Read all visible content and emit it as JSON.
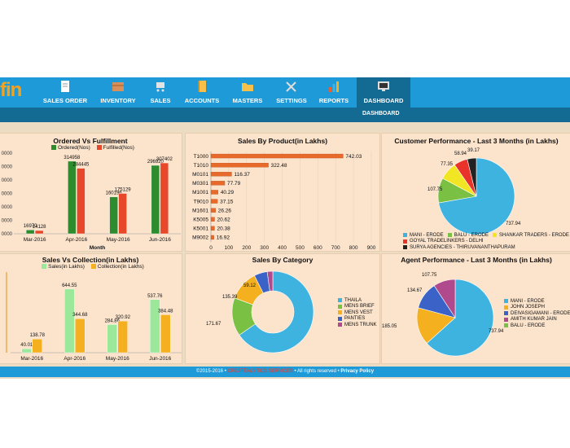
{
  "brand": {
    "logo_text": "fin"
  },
  "menu": [
    {
      "label": "SALES ORDER",
      "icon": "document-icon",
      "color": "#ffffff"
    },
    {
      "label": "INVENTORY",
      "icon": "box-icon",
      "color": "#d8905a"
    },
    {
      "label": "SALES",
      "icon": "cart-icon",
      "color": "#e3e3e3"
    },
    {
      "label": "ACCOUNTS",
      "icon": "ledger-icon",
      "color": "#f7c04a"
    },
    {
      "label": "MASTERS",
      "icon": "folder-icon",
      "color": "#f7c04a"
    },
    {
      "label": "SETTINGS",
      "icon": "tools-icon",
      "color": "#dddddd"
    },
    {
      "label": "REPORTS",
      "icon": "bar-chart-icon",
      "color": "#e9622d"
    },
    {
      "label": "DASHBOARD",
      "icon": "monitor-icon",
      "color": "#dddddd"
    }
  ],
  "submenu": {
    "label": "DASHBOARD"
  },
  "footer": {
    "copyright": "©2015-2016 • ",
    "brand": "CREATEALYTICS SERVICES",
    "rights": " • All rights reserved • ",
    "policy": "Privacy Policy"
  },
  "colors": {
    "nav": "#1f9ad8",
    "subnav": "#136a93",
    "panel": "#fbe3cc"
  },
  "chart_data": [
    {
      "id": "ordered",
      "type": "bar",
      "title": "Ordered Vs Fulfillment",
      "xlabel": "Month",
      "categories": [
        "Mar-2016",
        "Apr-2016",
        "May-2016",
        "Jun-2016"
      ],
      "series": [
        {
          "name": "Ordered(Nos)",
          "color": "#2e8b2e",
          "values": [
            16970,
            314958,
            160196,
            296920
          ]
        },
        {
          "name": "Fulfilled(Nos)",
          "color": "#e8482a",
          "values": [
            14128,
            284445,
            175129,
            307402
          ]
        }
      ],
      "yticks": [
        "0000",
        "0000",
        "0000",
        "0000",
        "0000",
        "0000",
        "0000"
      ],
      "ylim": [
        0,
        350000
      ]
    },
    {
      "id": "product",
      "type": "bar",
      "orientation": "horizontal",
      "title": "Sales By Product(in Lakhs)",
      "categories": [
        "T1000",
        "T1010",
        "M0101",
        "M0301",
        "M1001",
        "T9010",
        "M1601",
        "K5005",
        "K5001",
        "M9002"
      ],
      "values": [
        742.03,
        322.48,
        116.37,
        77.79,
        40.29,
        37.15,
        26.26,
        20.62,
        20.38,
        16.92
      ],
      "value_labels": [
        "742.03",
        "322.48",
        "116.37",
        "77.79",
        "40.29",
        "37.15",
        "26.26",
        "20.62",
        "20.38",
        "16.92"
      ],
      "xticks": [
        "0",
        "100",
        "200",
        "300",
        "400",
        "500",
        "600",
        "700",
        "800",
        "900"
      ],
      "xlim": [
        0,
        900
      ],
      "color": "#e86a2a"
    },
    {
      "id": "customer",
      "type": "pie",
      "title": "Customer Performance - Last 3 Months (in Lakhs)",
      "slices": [
        {
          "name": "MANI - ERODE",
          "value": 737.94,
          "color": "#3fb3e0"
        },
        {
          "name": "BALU - ERODE",
          "value": 107.75,
          "color": "#7ac043"
        },
        {
          "name": "SHANKAR TRADERS - ERODE",
          "value": 77.35,
          "color": "#f2e523"
        },
        {
          "name": "GOYAL TRADELINKERS - DELHI",
          "value": 58.94,
          "color": "#e8322a"
        },
        {
          "name": "SURYA AGENCIES - THIRUVANANTHAPURAM",
          "value": 39.17,
          "color": "#222222"
        }
      ]
    },
    {
      "id": "collection",
      "type": "bar",
      "title": "Sales Vs Collection(in Lakhs)",
      "categories": [
        "Mar-2016",
        "Apr-2016",
        "May-2016",
        "Jun-2016"
      ],
      "series": [
        {
          "name": "Sales(in Lakhs)",
          "color": "#9be89b",
          "values": [
            40.01,
            644.55,
            284.86,
            537.76
          ],
          "labels": [
            "40.01",
            "644.55",
            "284.86",
            "537.76"
          ]
        },
        {
          "name": "Collection(in Lakhs)",
          "color": "#f5b020",
          "values": [
            138.78,
            344.68,
            320.92,
            384.48
          ],
          "labels": [
            "138.78",
            "344.68",
            "320.92",
            "384.48"
          ]
        }
      ],
      "ylim": [
        0,
        800
      ]
    },
    {
      "id": "category",
      "type": "pie",
      "donut": true,
      "title": "Sales By Category",
      "slices": [
        {
          "name": "THAILA",
          "value": 740,
          "color": "#3fb3e0"
        },
        {
          "name": "MENS BRIEF",
          "value": 171.67,
          "color": "#7ac043"
        },
        {
          "name": "MENS VEST",
          "value": 135.39,
          "color": "#f5b020"
        },
        {
          "name": "PANTIES",
          "value": 59.12,
          "color": "#3a62c7"
        },
        {
          "name": "MENS TRUNK",
          "value": 25,
          "color": "#b04a8c"
        }
      ],
      "labels": [
        "171.67",
        "135.39",
        "59.12"
      ]
    },
    {
      "id": "agent",
      "type": "pie",
      "title": "Agent Performance - Last 3 Months (in Lakhs)",
      "slices": [
        {
          "name": "MANI - ERODE",
          "value": 737.94,
          "color": "#3fb3e0"
        },
        {
          "name": "JOHN JOSEPH",
          "value": 185.05,
          "color": "#f5b020"
        },
        {
          "name": "DEIVASIGAMANI - ERODE",
          "value": 134.67,
          "color": "#3a62c7"
        },
        {
          "name": "AMITH KUMAR JAIN",
          "value": 107.75,
          "color": "#b04a8c"
        },
        {
          "name": "BALU - ERODE",
          "value": 0,
          "color": "#7ac043"
        }
      ]
    }
  ]
}
